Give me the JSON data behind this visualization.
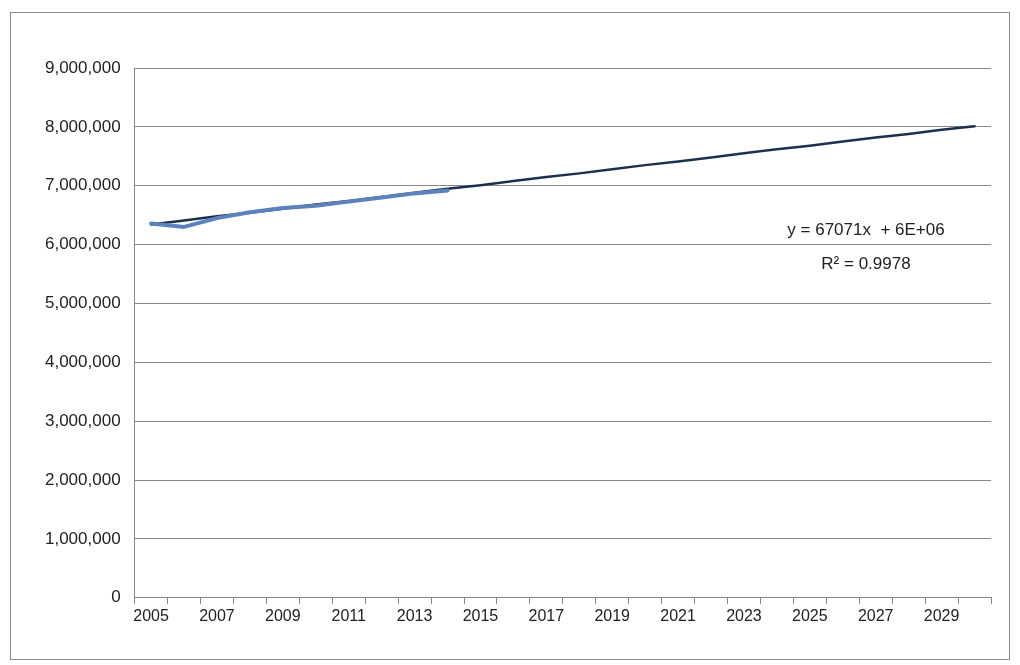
{
  "chart_data": {
    "type": "line",
    "categories": [
      "2005",
      null,
      "2007",
      null,
      "2009",
      null,
      "2011",
      null,
      "2013",
      null,
      "2015",
      null,
      "2017",
      null,
      "2019",
      null,
      "2021",
      null,
      "2023",
      null,
      "2025",
      null,
      "2027",
      null,
      "2029",
      null
    ],
    "series": [
      {
        "color": "#5b82bd",
        "values": [
          6360000,
          6300000,
          6450000,
          6550000,
          6620000,
          6660000,
          6730000,
          6800000,
          6870000,
          6920000,
          null,
          null,
          null,
          null,
          null,
          null,
          null,
          null,
          null,
          null,
          null,
          null,
          null,
          null,
          null,
          null
        ]
      },
      {
        "color": "#1c2f4f",
        "values": [
          6340000,
          6410000,
          6480000,
          6540000,
          6610000,
          6680000,
          6740000,
          6810000,
          6880000,
          6950000,
          7010000,
          7080000,
          7150000,
          7210000,
          7280000,
          7350000,
          7410000,
          7480000,
          7550000,
          7620000,
          7680000,
          7750000,
          7820000,
          7880000,
          7950000,
          8010000
        ]
      }
    ],
    "ylim": [
      0,
      9000000
    ],
    "yticks": [
      {
        "value": 0,
        "label": "0"
      },
      {
        "value": 1000000,
        "label": "1,000,000"
      },
      {
        "value": 2000000,
        "label": "2,000,000"
      },
      {
        "value": 3000000,
        "label": "3,000,000"
      },
      {
        "value": 4000000,
        "label": "4,000,000"
      },
      {
        "value": 5000000,
        "label": "5,000,000"
      },
      {
        "value": 6000000,
        "label": "6,000,000"
      },
      {
        "value": 7000000,
        "label": "7,000,000"
      },
      {
        "value": 8000000,
        "label": "8,000,000"
      },
      {
        "value": 9000000,
        "label": "9,000,000"
      }
    ],
    "grid": "y",
    "legend": false,
    "marker": "none",
    "annotations": [
      "y = 67071x  + 6E+06",
      "R² = 0.9978"
    ]
  }
}
